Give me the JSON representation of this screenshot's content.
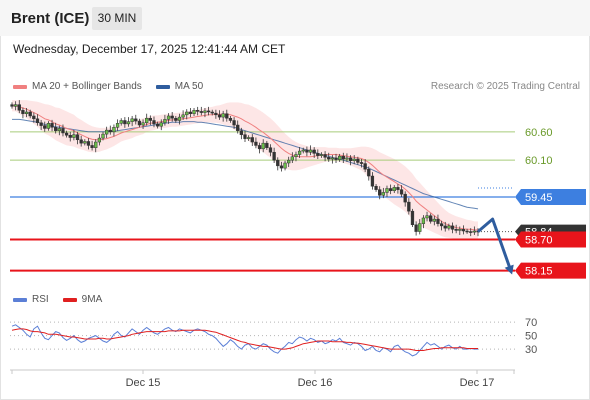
{
  "header": {
    "instrument": "Brent (ICE)",
    "timeframe": "30 MIN"
  },
  "timestamp": "Wednesday, December 17, 2025 12:41:44 AM CET",
  "legend_main": [
    {
      "label": "MA 20 + Bollinger Bands",
      "color": "#f08080"
    },
    {
      "label": "MA 50",
      "color": "#2f5d9e"
    }
  ],
  "legend_rsi": [
    {
      "label": "RSI",
      "color": "#5b7fd6"
    },
    {
      "label": "9MA",
      "color": "#e02020"
    }
  ],
  "credit": "Research © 2025 Trading Central",
  "colors": {
    "support": "#e8141b",
    "pivot": "#3d7fe0",
    "resistance": "#a8cc7a",
    "forecast_arrow": "#2f5d9e",
    "price_tag": "#333333"
  },
  "chart_data": {
    "type": "candlestick",
    "y_range": [
      57.95,
      61.25
    ],
    "x_labels": [
      "Dec 15",
      "Dec 16",
      "Dec 17"
    ],
    "price_levels": [
      {
        "value": 60.6,
        "label": "60.60",
        "kind": "resistance"
      },
      {
        "value": 60.1,
        "label": "60.10",
        "kind": "resistance"
      },
      {
        "value": 59.45,
        "label": "59.45",
        "kind": "pivot"
      },
      {
        "value": 58.7,
        "label": "58.70",
        "kind": "support"
      },
      {
        "value": 58.15,
        "label": "58.15",
        "kind": "support"
      }
    ],
    "last_price": {
      "value": 58.84,
      "label": "58.84"
    },
    "closes": [
      61.05,
      61.08,
      60.98,
      60.92,
      60.95,
      60.88,
      60.83,
      60.76,
      60.71,
      60.66,
      60.75,
      60.68,
      60.62,
      60.66,
      60.58,
      60.54,
      60.5,
      60.55,
      60.46,
      60.4,
      60.43,
      60.36,
      60.32,
      60.42,
      60.49,
      60.56,
      60.63,
      60.6,
      60.68,
      60.75,
      60.8,
      60.74,
      60.78,
      60.83,
      60.79,
      60.72,
      60.76,
      60.84,
      60.8,
      60.74,
      60.7,
      60.76,
      60.82,
      60.88,
      60.84,
      60.8,
      60.86,
      60.9,
      60.95,
      60.92,
      60.98,
      60.96,
      60.94,
      60.97,
      60.95,
      60.93,
      60.9,
      60.86,
      60.92,
      60.84,
      60.8,
      60.72,
      60.62,
      60.55,
      60.48,
      60.5,
      60.42,
      60.36,
      60.3,
      60.4,
      60.32,
      60.24,
      60.1,
      60.0,
      59.96,
      60.05,
      60.1,
      60.16,
      60.2,
      60.26,
      60.28,
      60.24,
      60.28,
      60.22,
      60.18,
      60.2,
      60.15,
      60.12,
      60.14,
      60.11,
      60.17,
      60.12,
      60.14,
      60.09,
      60.12,
      60.06,
      60.04,
      59.94,
      59.82,
      59.64,
      59.58,
      59.48,
      59.53,
      59.6,
      59.56,
      59.62,
      59.58,
      59.5,
      59.36,
      59.2,
      58.96,
      58.84,
      58.98,
      59.08,
      59.12,
      59.02,
      59.06,
      58.98,
      58.94,
      58.9,
      58.94,
      58.88,
      58.86,
      58.88,
      58.85,
      58.84,
      58.83,
      58.85,
      58.84
    ],
    "ma20": [
      61.06,
      61.06,
      61.04,
      61.02,
      61.0,
      60.97,
      60.94,
      60.91,
      60.87,
      60.83,
      60.81,
      60.78,
      60.74,
      60.72,
      60.69,
      60.66,
      60.64,
      60.62,
      60.58,
      60.55,
      60.52,
      60.49,
      60.47,
      60.46,
      60.46,
      60.47,
      60.48,
      60.5,
      60.52,
      60.55,
      60.58,
      60.6,
      60.62,
      60.64,
      60.66,
      60.68,
      60.7,
      60.73,
      60.75,
      60.76,
      60.77,
      60.78,
      60.79,
      60.8,
      60.81,
      60.81,
      60.82,
      60.83,
      60.84,
      60.85,
      60.86,
      60.87,
      60.88,
      60.89,
      60.9,
      60.9,
      60.91,
      60.91,
      60.91,
      60.91,
      60.9,
      60.88,
      60.86,
      60.83,
      60.79,
      60.76,
      60.72,
      60.68,
      60.63,
      60.59,
      60.54,
      60.49,
      60.43,
      60.37,
      60.31,
      60.26,
      60.22,
      60.19,
      60.17,
      60.16,
      60.16,
      60.16,
      60.16,
      60.17,
      60.18,
      60.19,
      60.2,
      60.2,
      60.2,
      60.2,
      60.19,
      60.18,
      60.17,
      60.16,
      60.15,
      60.14,
      60.13,
      60.1,
      60.06,
      60.01,
      59.95,
      59.89,
      59.84,
      59.8,
      59.76,
      59.72,
      59.68,
      59.64,
      59.59,
      59.53,
      59.46,
      59.38,
      59.32,
      59.27,
      59.22,
      59.17,
      59.12,
      59.07,
      59.02,
      58.98,
      58.95,
      58.93,
      58.91,
      58.9,
      58.89,
      58.88,
      58.88,
      58.87,
      58.87
    ],
    "ma50": [
      60.82,
      60.82,
      60.82,
      60.81,
      60.8,
      60.79,
      60.78,
      60.77,
      60.75,
      60.73,
      60.72,
      60.7,
      60.69,
      60.68,
      60.67,
      60.66,
      60.65,
      60.64,
      60.63,
      60.62,
      60.61,
      60.6,
      60.6,
      60.6,
      60.6,
      60.6,
      60.6,
      60.6,
      60.61,
      60.62,
      60.63,
      60.64,
      60.65,
      60.66,
      60.67,
      60.68,
      60.69,
      60.7,
      60.71,
      60.72,
      60.73,
      60.74,
      60.75,
      60.76,
      60.77,
      60.77,
      60.77,
      60.78,
      60.78,
      60.78,
      60.78,
      60.77,
      60.77,
      60.76,
      60.75,
      60.74,
      60.73,
      60.72,
      60.71,
      60.7,
      60.69,
      60.68,
      60.66,
      60.64,
      60.62,
      60.6,
      60.58,
      60.56,
      60.54,
      60.52,
      60.5,
      60.48,
      60.46,
      60.44,
      60.42,
      60.4,
      60.38,
      60.36,
      60.34,
      60.32,
      60.3,
      60.28,
      60.26,
      60.24,
      60.22,
      60.2,
      60.18,
      60.17,
      60.15,
      60.13,
      60.12,
      60.1,
      60.08,
      60.06,
      60.04,
      60.02,
      60.0,
      59.98,
      59.96,
      59.93,
      59.9,
      59.87,
      59.84,
      59.81,
      59.78,
      59.75,
      59.72,
      59.69,
      59.66,
      59.63,
      59.6,
      59.57,
      59.54,
      59.51,
      59.49,
      59.47,
      59.45,
      59.43,
      59.41,
      59.39,
      59.37,
      59.35,
      59.33,
      59.31,
      59.29,
      59.27,
      59.26,
      59.25,
      59.24
    ],
    "bb_width": [
      0.1,
      0.1,
      0.12,
      0.14,
      0.16,
      0.18,
      0.2,
      0.22,
      0.24,
      0.26,
      0.27,
      0.28,
      0.29,
      0.3,
      0.3,
      0.3,
      0.29,
      0.28,
      0.27,
      0.26,
      0.25,
      0.24,
      0.23,
      0.22,
      0.21,
      0.2,
      0.19,
      0.18,
      0.17,
      0.16,
      0.15,
      0.15,
      0.15,
      0.15,
      0.14,
      0.14,
      0.14,
      0.13,
      0.13,
      0.13,
      0.12,
      0.12,
      0.12,
      0.12,
      0.12,
      0.12,
      0.12,
      0.12,
      0.12,
      0.12,
      0.12,
      0.12,
      0.12,
      0.13,
      0.13,
      0.14,
      0.15,
      0.16,
      0.18,
      0.2,
      0.22,
      0.24,
      0.26,
      0.28,
      0.3,
      0.32,
      0.33,
      0.34,
      0.35,
      0.35,
      0.35,
      0.35,
      0.35,
      0.34,
      0.33,
      0.31,
      0.29,
      0.27,
      0.25,
      0.23,
      0.21,
      0.19,
      0.17,
      0.16,
      0.15,
      0.14,
      0.13,
      0.12,
      0.12,
      0.12,
      0.12,
      0.13,
      0.14,
      0.15,
      0.17,
      0.19,
      0.21,
      0.24,
      0.27,
      0.3,
      0.33,
      0.35,
      0.37,
      0.38,
      0.39,
      0.4,
      0.4,
      0.4,
      0.4,
      0.4,
      0.4,
      0.39,
      0.38,
      0.36,
      0.34,
      0.32,
      0.3,
      0.28,
      0.26,
      0.24,
      0.22,
      0.21,
      0.2,
      0.19,
      0.18,
      0.17,
      0.16,
      0.15,
      0.15
    ],
    "forecast_path": [
      {
        "index": 128,
        "value": 58.84
      },
      {
        "index": 132,
        "value": 59.06
      },
      {
        "index": 137,
        "value": 58.15
      }
    ],
    "rsi": {
      "levels": [
        {
          "value": 70,
          "label": "70"
        },
        {
          "value": 50,
          "label": "50"
        },
        {
          "value": 30,
          "label": "30"
        }
      ],
      "y_range": [
        8,
        82
      ],
      "rsi": [
        64,
        66,
        62,
        58,
        52,
        48,
        60,
        64,
        54,
        46,
        44,
        50,
        56,
        54,
        47,
        43,
        46,
        50,
        44,
        40,
        42,
        46,
        48,
        50,
        46,
        42,
        40,
        44,
        52,
        56,
        50,
        48,
        54,
        60,
        56,
        52,
        58,
        62,
        58,
        54,
        52,
        56,
        60,
        62,
        58,
        56,
        60,
        58,
        56,
        54,
        58,
        60,
        58,
        56,
        52,
        50,
        46,
        40,
        34,
        38,
        44,
        40,
        34,
        30,
        36,
        38,
        32,
        30,
        34,
        38,
        36,
        30,
        26,
        24,
        30,
        34,
        40,
        38,
        44,
        48,
        46,
        42,
        46,
        44,
        40,
        42,
        38,
        40,
        44,
        42,
        46,
        40,
        38,
        36,
        40,
        38,
        34,
        28,
        30,
        34,
        28,
        26,
        32,
        30,
        26,
        34,
        36,
        30,
        26,
        24,
        20,
        22,
        28,
        34,
        40,
        36,
        38,
        34,
        30,
        34,
        36,
        32,
        30,
        34,
        30,
        30,
        31,
        30,
        30
      ],
      "ma9": [
        58,
        59,
        60,
        60,
        59,
        57,
        56,
        56,
        55,
        54,
        52,
        52,
        52,
        51,
        50,
        49,
        48,
        48,
        47,
        46,
        45,
        45,
        45,
        45,
        46,
        46,
        45,
        45,
        46,
        47,
        48,
        49,
        50,
        52,
        53,
        54,
        55,
        56,
        56,
        56,
        56,
        56,
        56,
        57,
        57,
        57,
        57,
        58,
        58,
        58,
        58,
        58,
        58,
        58,
        57,
        56,
        55,
        53,
        51,
        49,
        47,
        45,
        43,
        41,
        40,
        38,
        37,
        36,
        35,
        34,
        34,
        33,
        32,
        31,
        30,
        30,
        31,
        32,
        34,
        36,
        38,
        39,
        40,
        41,
        42,
        42,
        42,
        42,
        41,
        41,
        41,
        41,
        40,
        40,
        39,
        39,
        38,
        37,
        36,
        35,
        34,
        33,
        32,
        31,
        30,
        30,
        30,
        30,
        30,
        30,
        29,
        28,
        28,
        28,
        29,
        30,
        31,
        31,
        32,
        32,
        32,
        32,
        32,
        32,
        32,
        31,
        31,
        31,
        31
      ]
    }
  }
}
